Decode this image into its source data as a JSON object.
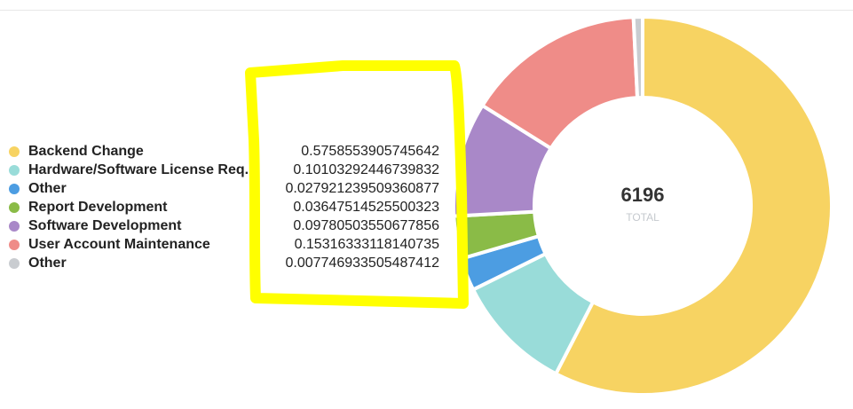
{
  "chart_data": {
    "type": "pie",
    "categories": [
      "Backend Change",
      "Hardware/Software License Req...",
      "Other",
      "Report Development",
      "Software Development",
      "User Account Maintenance",
      "Other"
    ],
    "values": [
      0.5758553905745643,
      0.10103292446739832,
      0.027921239509360877,
      0.03647514525500323,
      0.09780503550677856,
      0.15316333118140735,
      0.007746933505487412
    ],
    "value_labels": [
      "0.5758553905745642",
      "0.10103292446739832",
      "0.027921239509360877",
      "0.03647514525500323",
      "0.09780503550677856",
      "0.15316333118140735",
      "0.007746933505487412"
    ],
    "colors": [
      "#f7d362",
      "#99dcd9",
      "#4c9de2",
      "#8abb47",
      "#a988c8",
      "#ef8c88",
      "#c9ccd0"
    ],
    "total": "6196",
    "total_label": "TOTAL",
    "title": "",
    "legend_position": "left"
  },
  "annotation": {
    "color": "#ffff00"
  }
}
